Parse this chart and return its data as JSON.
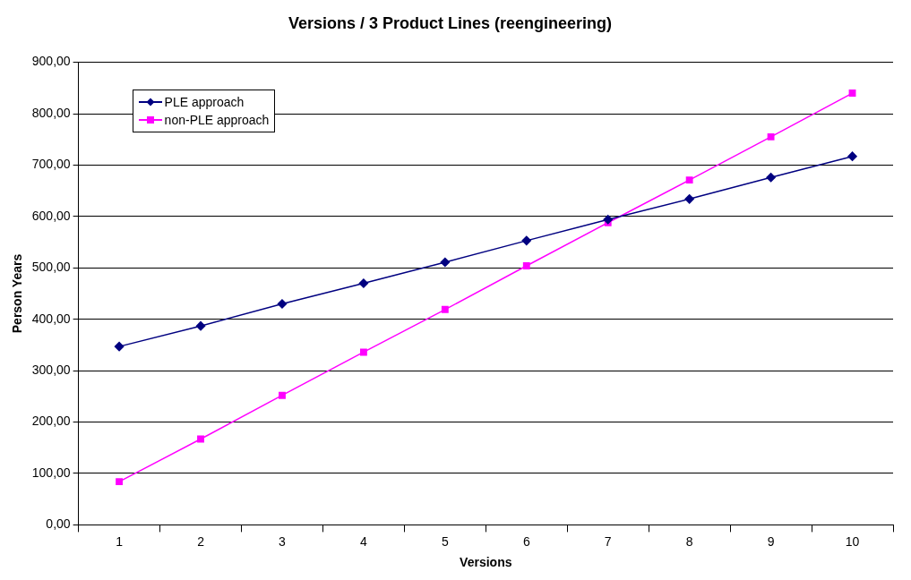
{
  "chart_data": {
    "type": "line",
    "title": "Versions / 3 Product Lines (reengineering)",
    "xlabel": "Versions",
    "ylabel": "Person Years",
    "categories": [
      "1",
      "2",
      "3",
      "4",
      "5",
      "6",
      "7",
      "8",
      "9",
      "10"
    ],
    "series": [
      {
        "name": "PLE approach",
        "color": "#000080",
        "marker": "diamond",
        "values": [
          347,
          387,
          430,
          470,
          511,
          553,
          594,
          634,
          676,
          717
        ]
      },
      {
        "name": "non-PLE approach",
        "color": "#ff00ff",
        "marker": "square",
        "values": [
          84,
          167,
          252,
          336,
          419,
          504,
          588,
          671,
          755,
          840
        ]
      }
    ],
    "ylim": [
      0,
      900
    ],
    "yticks": [
      {
        "value": 0,
        "label": "0,00"
      },
      {
        "value": 100,
        "label": "100,00"
      },
      {
        "value": 200,
        "label": "200,00"
      },
      {
        "value": 300,
        "label": "300,00"
      },
      {
        "value": 400,
        "label": "400,00"
      },
      {
        "value": 500,
        "label": "500,00"
      },
      {
        "value": 600,
        "label": "600,00"
      },
      {
        "value": 700,
        "label": "700,00"
      },
      {
        "value": 800,
        "label": "800,00"
      },
      {
        "value": 900,
        "label": "900,00"
      }
    ],
    "grid": "y",
    "legend": "top left",
    "line_style": "solid"
  }
}
